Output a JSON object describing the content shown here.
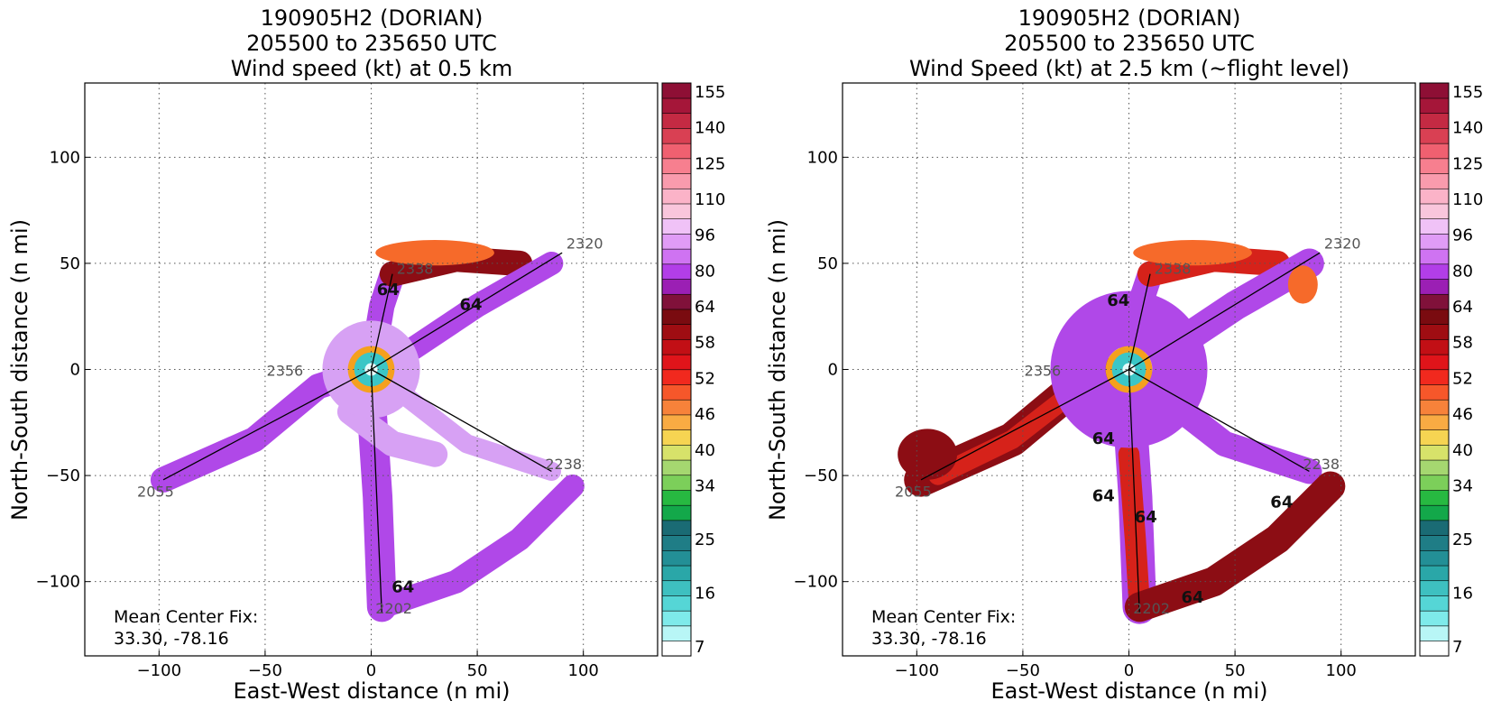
{
  "storm_id": "190905H2 (DORIAN)",
  "time_range": "205500 to 235650 UTC",
  "panels": [
    {
      "title_line3": "Wind speed (kt) at 0.5 km",
      "xlabel": "East-West distance (n mi)",
      "ylabel": "North-South distance (n mi)",
      "fix_label": "Mean Center Fix:",
      "fix_value": "33.30, -78.16",
      "contour_labels": [
        "64",
        "64",
        "64"
      ],
      "track_labels": [
        "2320",
        "2338",
        "2356",
        "2055",
        "2238",
        "2202"
      ]
    },
    {
      "title_line3": "Wind Speed (kt) at 2.5 km (~flight level)",
      "xlabel": "East-West distance (n mi)",
      "ylabel": "North-South distance (n mi)",
      "fix_label": "Mean Center Fix:",
      "fix_value": "33.30, -78.16",
      "contour_labels": [
        "64",
        "64",
        "64",
        "64",
        "64",
        "64"
      ],
      "track_labels": [
        "2320",
        "2338",
        "2356",
        "2055",
        "2238",
        "2202"
      ]
    }
  ],
  "chart_data": [
    {
      "type": "heatmap",
      "title": "190905H2 (DORIAN) 205500 to 235650 UTC Wind speed (kt) at 0.5 km",
      "xlabel": "East-West distance (n mi)",
      "ylabel": "North-South distance (n mi)",
      "xlim": [
        -135,
        135
      ],
      "ylim": [
        -135,
        135
      ],
      "xticks": [
        "−100",
        "−50",
        "0",
        "50",
        "100"
      ],
      "yticks": [
        "−100",
        "−50",
        "0",
        "50",
        "100"
      ],
      "grid": true,
      "colorbar_ticks": [
        "7",
        "16",
        "25",
        "34",
        "40",
        "46",
        "52",
        "58",
        "64",
        "80",
        "96",
        "110",
        "125",
        "140",
        "155"
      ],
      "colorbar_levels": [
        7,
        10,
        13,
        16,
        19,
        22,
        25,
        28,
        31,
        34,
        37,
        40,
        43,
        46,
        49,
        52,
        55,
        58,
        61,
        64,
        72,
        80,
        88,
        96,
        103,
        110,
        117,
        125,
        132,
        140,
        147,
        155
      ],
      "flight_track": [
        {
          "label": "2055",
          "x": -98,
          "y": -52
        },
        {
          "label": "2356",
          "x": 0,
          "y": 0
        },
        {
          "label": "2320",
          "x": 90,
          "y": 55
        },
        {
          "label": "2338",
          "x": 10,
          "y": 45
        },
        {
          "label": "2202",
          "x": 5,
          "y": -115
        },
        {
          "label": "2238",
          "x": 85,
          "y": -48
        }
      ],
      "center": [
        0,
        0
      ]
    },
    {
      "type": "heatmap",
      "title": "190905H2 (DORIAN) 205500 to 235650 UTC Wind Speed (kt) at 2.5 km (~flight level)",
      "xlabel": "East-West distance (n mi)",
      "ylabel": "North-South distance (n mi)",
      "xlim": [
        -135,
        135
      ],
      "ylim": [
        -135,
        135
      ],
      "xticks": [
        "−100",
        "−50",
        "0",
        "50",
        "100"
      ],
      "yticks": [
        "−100",
        "−50",
        "0",
        "50",
        "100"
      ],
      "grid": true,
      "colorbar_ticks": [
        "7",
        "16",
        "25",
        "34",
        "40",
        "46",
        "52",
        "58",
        "64",
        "80",
        "96",
        "110",
        "125",
        "140",
        "155"
      ],
      "colorbar_levels": [
        7,
        10,
        13,
        16,
        19,
        22,
        25,
        28,
        31,
        34,
        37,
        40,
        43,
        46,
        49,
        52,
        55,
        58,
        61,
        64,
        72,
        80,
        88,
        96,
        103,
        110,
        117,
        125,
        132,
        140,
        147,
        155
      ],
      "flight_track": [
        {
          "label": "2055",
          "x": -98,
          "y": -52
        },
        {
          "label": "2356",
          "x": 0,
          "y": 0
        },
        {
          "label": "2320",
          "x": 90,
          "y": 55
        },
        {
          "label": "2338",
          "x": 10,
          "y": 45
        },
        {
          "label": "2202",
          "x": 5,
          "y": -115
        },
        {
          "label": "2238",
          "x": 85,
          "y": -48
        }
      ],
      "center": [
        0,
        0
      ]
    }
  ],
  "colors": {
    "cbar": [
      "#ffffff",
      "#b8f6f6",
      "#7eeaea",
      "#55d6d6",
      "#3ec0c0",
      "#2aa7a8",
      "#238f96",
      "#1f7d86",
      "#1a6b74",
      "#13a84a",
      "#27b941",
      "#7ccf5a",
      "#a5d770",
      "#d7e26a",
      "#f6d452",
      "#f9ab43",
      "#f7823a",
      "#f6572a",
      "#f1291e",
      "#e0141a",
      "#c20f15",
      "#9f0d12",
      "#7a0b10",
      "#80113a",
      "#9b1fb4",
      "#b23ee8",
      "#cf73f2",
      "#e09cf6",
      "#f0c2f7",
      "#f9c6dc",
      "#fbb3c8",
      "#f99bad",
      "#f77f8f",
      "#f06070",
      "#d94053",
      "#c42a43",
      "#a51639",
      "#8e0f35"
    ],
    "purple": "#b048e8",
    "lilac": "#d7a1f4",
    "darkred": "#8c0d14",
    "red": "#d6221a",
    "orange": "#f66a2a",
    "eye": "#3bc6c6"
  }
}
